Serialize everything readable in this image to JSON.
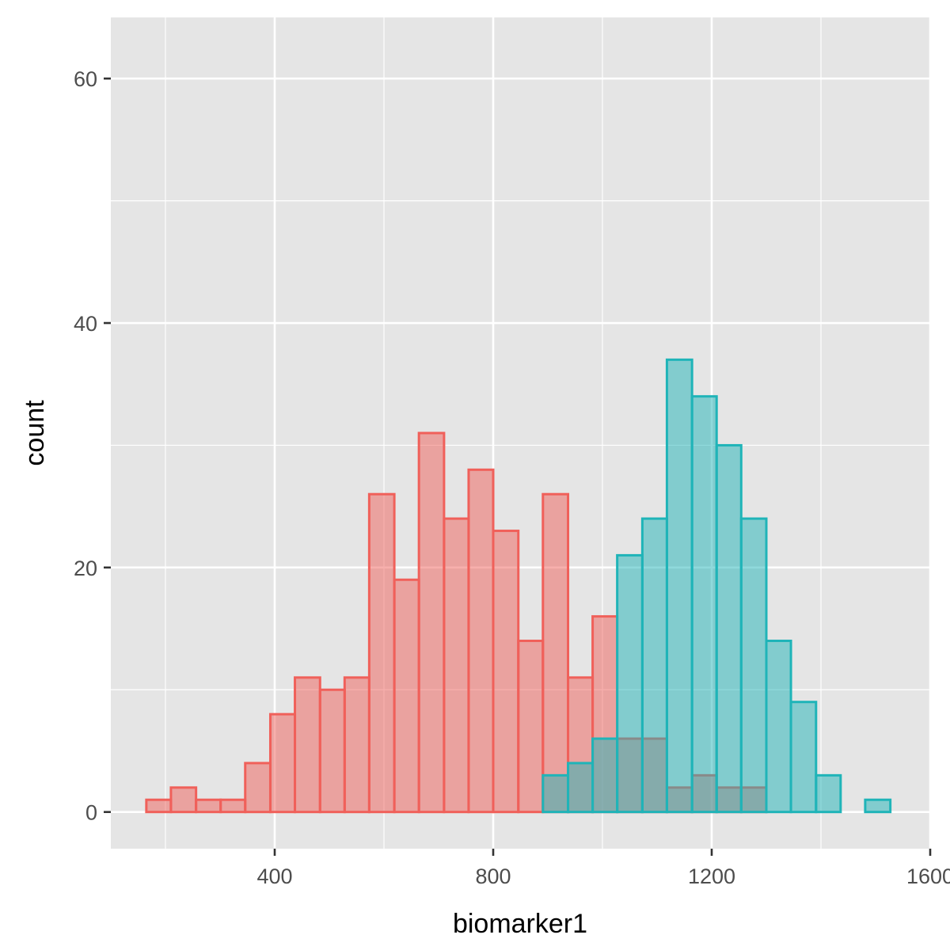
{
  "chart_data": {
    "type": "bar",
    "title": "",
    "xlabel": "biomarker1",
    "ylabel": "count",
    "xlim": [
      100,
      1600
    ],
    "ylim": [
      -3,
      65
    ],
    "x_ticks": [
      400,
      800,
      1200,
      1600
    ],
    "x_tick_labels": [
      "400",
      "800",
      "1200",
      "1600"
    ],
    "y_ticks": [
      0,
      20,
      40,
      60
    ],
    "y_tick_labels": [
      "0",
      "20",
      "40",
      "60"
    ],
    "grid": true,
    "legend": "none",
    "bin_edges": [
      165,
      210,
      256,
      301,
      346,
      392,
      437,
      483,
      528,
      573,
      619,
      664,
      710,
      755,
      800,
      846,
      891,
      937,
      982,
      1027,
      1073,
      1118,
      1164,
      1209,
      1254,
      1300,
      1345,
      1391,
      1436,
      1481,
      1527
    ],
    "series": [
      {
        "color": "#f0605a",
        "fill": "#f0605a",
        "values": [
          1,
          2,
          1,
          1,
          4,
          8,
          11,
          10,
          11,
          26,
          19,
          31,
          24,
          28,
          23,
          14,
          26,
          11,
          16,
          6,
          6,
          2,
          3,
          2,
          2,
          0,
          0,
          0,
          0,
          0
        ]
      },
      {
        "color": "#1fb4b8",
        "fill": "#1fb4b8",
        "values": [
          0,
          0,
          0,
          0,
          0,
          0,
          0,
          0,
          0,
          0,
          0,
          0,
          0,
          0,
          0,
          0,
          3,
          4,
          6,
          21,
          24,
          37,
          34,
          30,
          24,
          14,
          9,
          3,
          0,
          1
        ]
      }
    ]
  }
}
